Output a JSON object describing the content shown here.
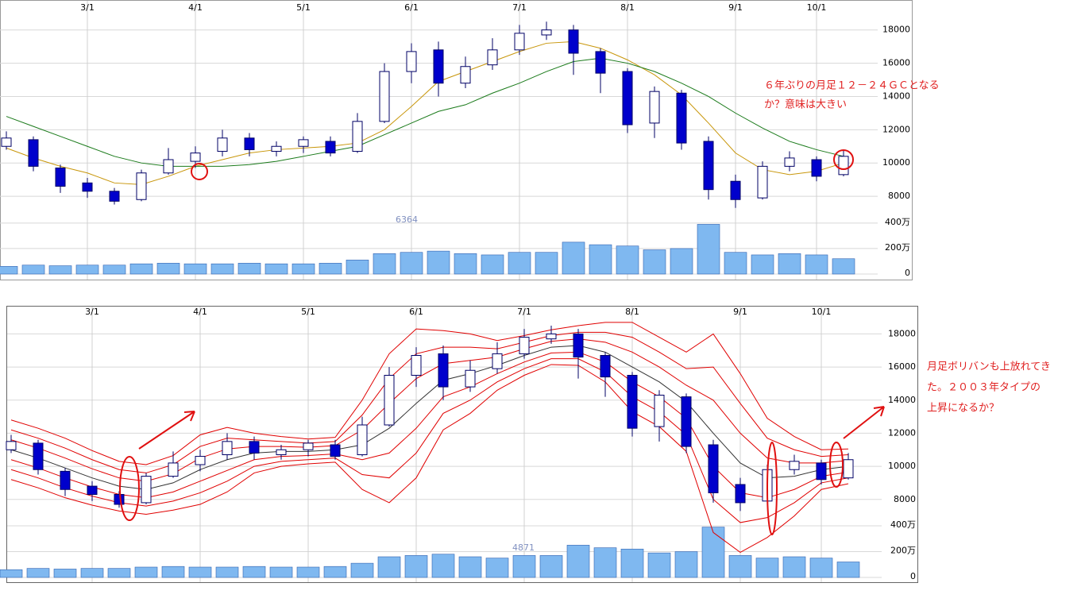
{
  "chart_data": [
    {
      "type": "candlestick",
      "categories": [
        null,
        null,
        null,
        "3/1",
        null,
        null,
        null,
        "4/1",
        null,
        null,
        null,
        "5/1",
        null,
        null,
        null,
        "6/1",
        null,
        null,
        null,
        "7/1",
        null,
        null,
        null,
        "8/1",
        null,
        null,
        null,
        "9/1",
        null,
        null,
        "10/1",
        null
      ],
      "open": [
        11000,
        11400,
        9700,
        8800,
        8300,
        7800,
        9400,
        10100,
        10700,
        11500,
        10700,
        11000,
        11300,
        10700,
        12500,
        15500,
        16800,
        14800,
        15900,
        16800,
        17700,
        18000,
        16700,
        15500,
        12400,
        14200,
        11300,
        8900,
        7900,
        9800,
        10200,
        9300
      ],
      "high": [
        11900,
        11600,
        9900,
        9100,
        8500,
        9600,
        10900,
        11000,
        12000,
        11800,
        11300,
        11600,
        11600,
        13000,
        16000,
        17200,
        17300,
        16400,
        17500,
        18300,
        18500,
        18300,
        16900,
        15700,
        14600,
        14400,
        11600,
        9300,
        10100,
        10700,
        10400,
        10800
      ],
      "low": [
        10800,
        9500,
        8200,
        7900,
        7500,
        7700,
        9300,
        9700,
        10400,
        10400,
        10400,
        10600,
        10400,
        10600,
        12400,
        14800,
        14000,
        14500,
        15600,
        16500,
        17400,
        15300,
        14200,
        11800,
        11500,
        10800,
        7800,
        7300,
        7800,
        9500,
        8900,
        9200
      ],
      "close": [
        11500,
        9800,
        8600,
        8300,
        7700,
        9400,
        10200,
        10600,
        11500,
        10800,
        11000,
        11400,
        10600,
        12500,
        15500,
        16700,
        14800,
        15800,
        16800,
        17800,
        18000,
        16600,
        15400,
        12300,
        14300,
        11200,
        8400,
        7800,
        9800,
        10300,
        9200,
        10400
      ],
      "volume": [
        60,
        70,
        65,
        70,
        70,
        80,
        85,
        80,
        80,
        85,
        80,
        80,
        85,
        110,
        160,
        170,
        180,
        160,
        150,
        170,
        170,
        250,
        230,
        220,
        190,
        200,
        390,
        170,
        150,
        160,
        150,
        120
      ],
      "lines": [
        {
          "color": "#c8960a",
          "values": [
            10900,
            10300,
            9800,
            9400,
            8800,
            8700,
            9200,
            9800,
            10200,
            10600,
            10800,
            10900,
            11000,
            11200,
            12000,
            13400,
            14900,
            15500,
            16100,
            16700,
            17200,
            17300,
            16900,
            16200,
            15300,
            14100,
            12400,
            10600,
            9600,
            9300,
            9500,
            10000
          ]
        },
        {
          "color": "#1a7a1a",
          "values": [
            12800,
            12200,
            11600,
            11000,
            10400,
            10000,
            9800,
            9800,
            9800,
            9900,
            10100,
            10400,
            10700,
            11000,
            11700,
            12400,
            13100,
            13500,
            14200,
            14800,
            15500,
            16100,
            16300,
            16000,
            15500,
            14800,
            14000,
            13000,
            12100,
            11300,
            10800,
            10400
          ]
        }
      ],
      "up_color": "#ffffff",
      "down_color": "#0000cc",
      "volume_color": "#7fb8f0",
      "ylim": [
        7000,
        19800
      ],
      "yticks": [
        8000,
        10000,
        12000,
        14000,
        16000,
        18000
      ],
      "vol_ylim": [
        0,
        480
      ],
      "vol_ticks": [
        0,
        {
          "value": 200,
          "label": "200万"
        },
        {
          "value": 400,
          "label": "400万"
        }
      ],
      "peak_label": "6364",
      "annotations": [
        "６年ぶりの月足１２－２４ＧＣとなる",
        "か？意味は大きい"
      ]
    },
    {
      "type": "bollinger",
      "ylim": [
        6500,
        19700
      ],
      "yticks": [
        8000,
        10000,
        12000,
        14000,
        16000,
        18000
      ],
      "vol_ylim": [
        0,
        400
      ],
      "vol_ticks": [
        0,
        {
          "value": 200,
          "label": "200万"
        },
        {
          "value": 400,
          "label": "400万"
        }
      ],
      "bands": [
        {
          "color": "#e00000",
          "values": [
            9200,
            8700,
            8100,
            7650,
            7300,
            7100,
            7350,
            7700,
            8450,
            9600,
            10000,
            10150,
            10250,
            8600,
            7800,
            9300,
            12200,
            13200,
            14600,
            15500,
            16150,
            16100,
            15100,
            13300,
            12400,
            10900,
            6000,
            4800,
            5700,
            7000,
            8600,
            8950
          ]
        },
        {
          "color": "#e00000",
          "values": [
            9800,
            9300,
            8700,
            8200,
            7800,
            7600,
            7900,
            8400,
            9100,
            10000,
            10300,
            10400,
            10500,
            9500,
            9300,
            10800,
            13200,
            14000,
            15100,
            15900,
            16500,
            16500,
            15700,
            14200,
            13300,
            11900,
            8000,
            6600,
            6900,
            7800,
            9000,
            9300
          ]
        },
        {
          "color": "#e00000",
          "values": [
            10400,
            9900,
            9300,
            8750,
            8300,
            8100,
            8450,
            9100,
            9750,
            10400,
            10600,
            10650,
            10750,
            10400,
            10800,
            12300,
            14200,
            14800,
            15600,
            16300,
            16850,
            16900,
            16300,
            15100,
            14200,
            12900,
            10000,
            8400,
            8100,
            8600,
            9400,
            9650
          ]
        },
        {
          "color": "#333333",
          "values": [
            11000,
            10500,
            9900,
            9300,
            8800,
            8600,
            9000,
            9800,
            10400,
            10800,
            10900,
            10900,
            11000,
            11300,
            12300,
            13800,
            15200,
            15600,
            16100,
            16700,
            17200,
            17300,
            16900,
            16000,
            15100,
            13900,
            12000,
            10200,
            9300,
            9400,
            9800,
            10000
          ]
        },
        {
          "color": "#e00000",
          "values": [
            11600,
            11100,
            10500,
            9850,
            9300,
            9100,
            9550,
            10500,
            11050,
            11200,
            11200,
            11150,
            11250,
            12200,
            13800,
            15300,
            16200,
            16400,
            16600,
            17100,
            17550,
            17700,
            17500,
            16900,
            16000,
            14900,
            14000,
            12000,
            10500,
            10200,
            10200,
            10350
          ]
        },
        {
          "color": "#e00000",
          "values": [
            12200,
            11700,
            11100,
            10400,
            9800,
            9600,
            10100,
            11200,
            11700,
            11600,
            11500,
            11400,
            11500,
            13100,
            15300,
            16800,
            17200,
            17200,
            17100,
            17500,
            17900,
            18100,
            18100,
            17800,
            16900,
            15900,
            16000,
            13800,
            11700,
            11000,
            10600,
            10700
          ]
        },
        {
          "color": "#e00000",
          "values": [
            12800,
            12300,
            11700,
            10950,
            10300,
            10100,
            10650,
            11900,
            12350,
            12000,
            11800,
            11650,
            11750,
            14000,
            16800,
            18300,
            18200,
            18000,
            17600,
            17900,
            18250,
            18500,
            18700,
            18700,
            17800,
            16900,
            18000,
            15600,
            12900,
            11800,
            11000,
            11050
          ]
        }
      ],
      "peak_label": "4871",
      "annotations": [
        "月足ボリバンも上放れてき",
        "た。２００３年タイプの",
        "上昇になるか？"
      ]
    }
  ]
}
